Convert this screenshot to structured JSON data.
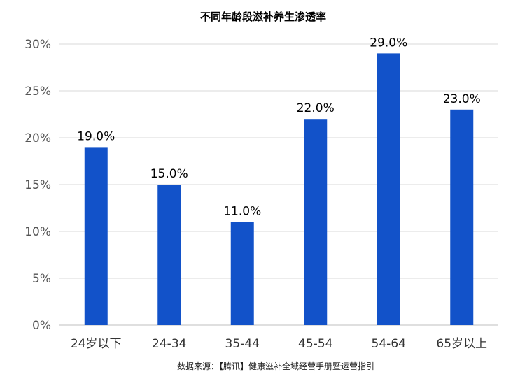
{
  "chart_data": {
    "type": "bar",
    "title": "不同年龄段滋补养生渗透率",
    "categories": [
      "24岁以下",
      "24-34",
      "35-44",
      "45-54",
      "54-64",
      "65岁以上"
    ],
    "values": [
      19.0,
      15.0,
      11.0,
      22.0,
      29.0,
      23.0
    ],
    "data_labels": [
      "19.0%",
      "15.0%",
      "11.0%",
      "22.0%",
      "29.0%",
      "23.0%"
    ],
    "ylim": [
      0,
      30
    ],
    "yticks": [
      0,
      5,
      10,
      15,
      20,
      25,
      30
    ],
    "ytick_labels": [
      "0%",
      "5%",
      "10%",
      "15%",
      "20%",
      "25%",
      "30%"
    ],
    "xlabel": "",
    "ylabel": "",
    "grid": true,
    "legend": "none",
    "bar_color": "#1252c9"
  },
  "source_note": "数据来源：【腾讯】健康滋补全域经营手册暨运营指引"
}
